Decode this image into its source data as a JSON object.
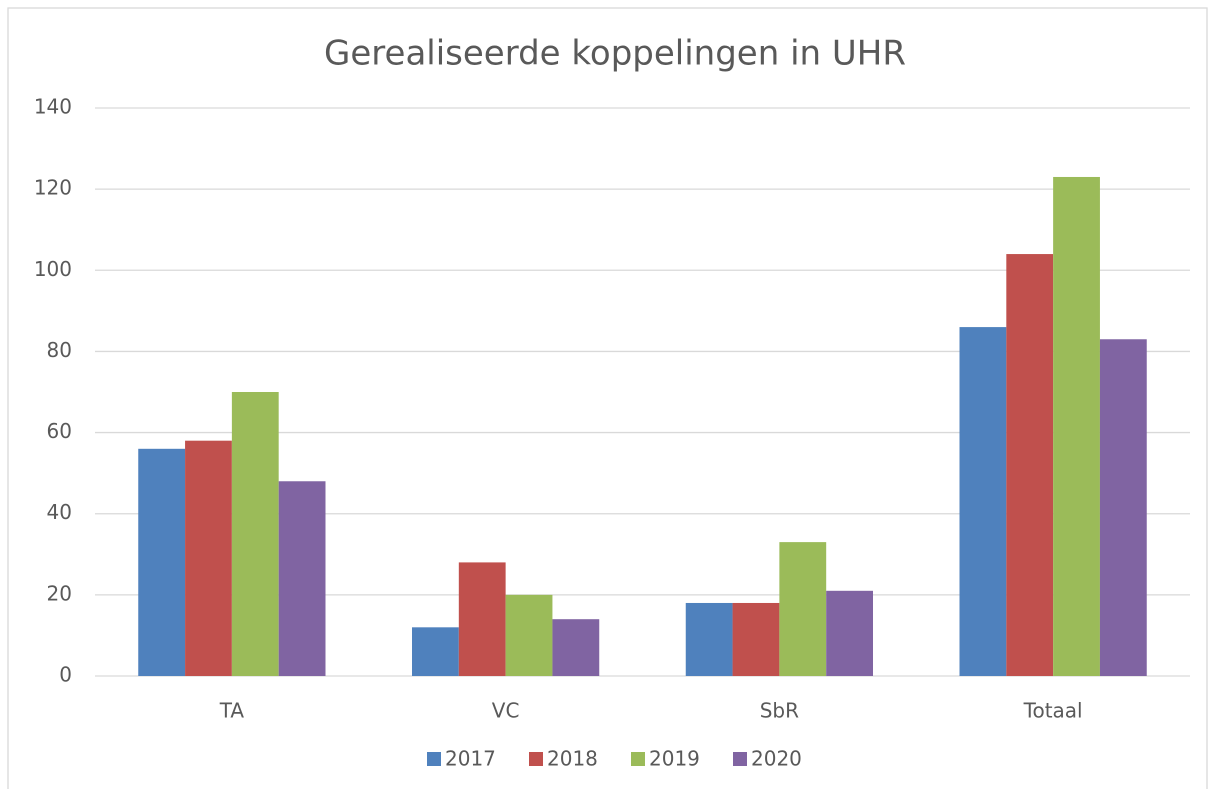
{
  "chart_data": {
    "type": "bar",
    "title": "Gerealiseerde koppelingen in UHR",
    "categories": [
      "TA",
      "VC",
      "SbR",
      "Totaal"
    ],
    "series": [
      {
        "name": "2017",
        "color": "#4f81bd",
        "values": [
          56,
          12,
          18,
          86
        ]
      },
      {
        "name": "2018",
        "color": "#c0504d",
        "values": [
          58,
          28,
          18,
          104
        ]
      },
      {
        "name": "2019",
        "color": "#9bbb59",
        "values": [
          70,
          20,
          33,
          123
        ]
      },
      {
        "name": "2020",
        "color": "#8064a2",
        "values": [
          48,
          14,
          21,
          83
        ]
      }
    ],
    "ylim": [
      0,
      140
    ],
    "yticks": [
      0,
      20,
      40,
      60,
      80,
      100,
      120,
      140
    ],
    "grid": true,
    "legend": "bottom"
  }
}
